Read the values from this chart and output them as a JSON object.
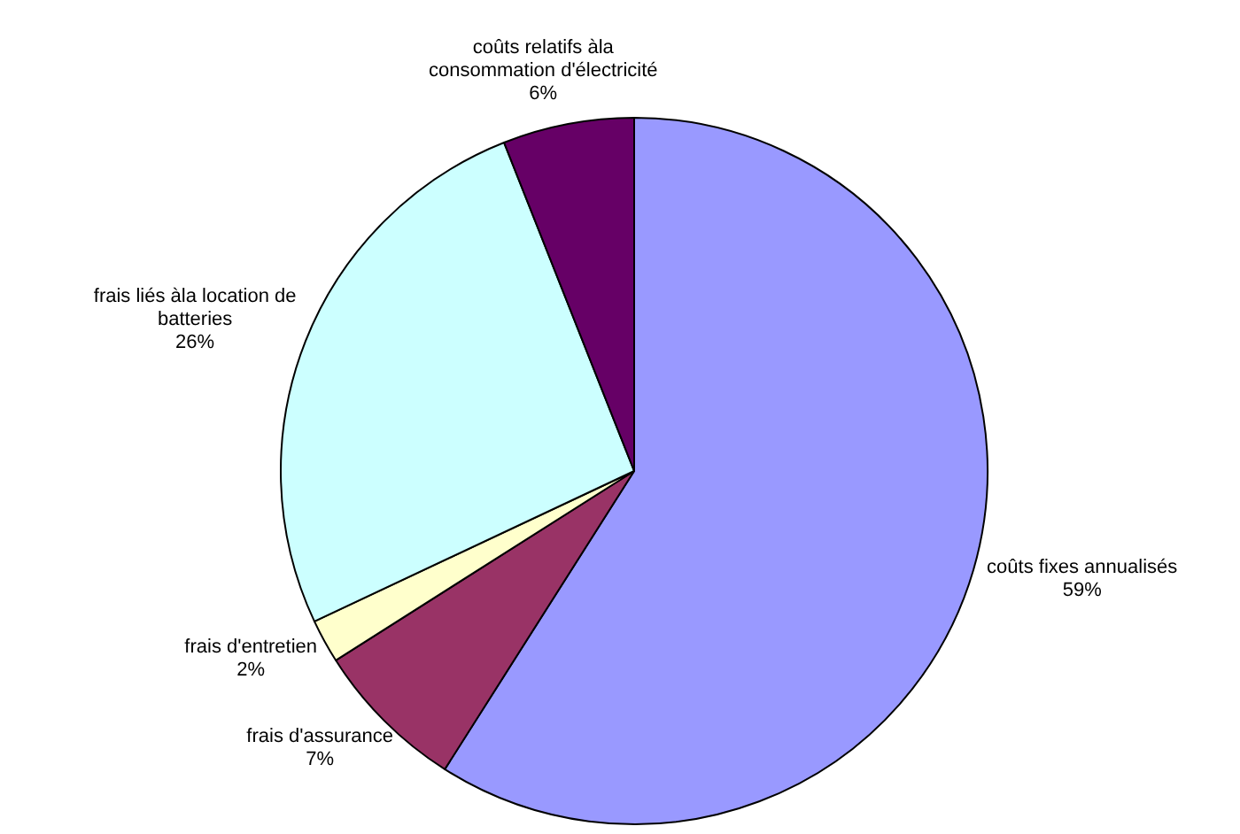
{
  "chart_data": {
    "type": "pie",
    "categories": [
      "coûts fixes annualisés",
      "frais d'assurance",
      "frais d'entretien",
      "frais liés àla location de batteries",
      "coûts relatifs àla consommation d'électricité"
    ],
    "values": [
      59,
      7,
      2,
      26,
      6
    ],
    "colors": [
      "#9999ff",
      "#993366",
      "#ffffcc",
      "#ccffff",
      "#660066"
    ],
    "value_labels": [
      "59%",
      "7%",
      "2%",
      "26%",
      "6%"
    ],
    "legend": false
  }
}
